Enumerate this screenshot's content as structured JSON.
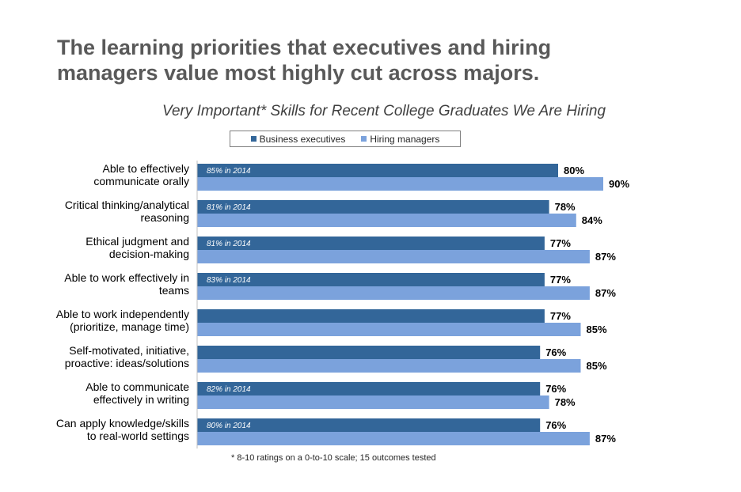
{
  "headline": "The learning priorities that executives and hiring managers value most highly cut across majors.",
  "footnote": "* 8-10 ratings on a 0-to-10 scale; 15 outcomes tested",
  "colors": {
    "executives": "#336699",
    "managers": "#7BA2DC"
  },
  "chart_data": {
    "type": "bar",
    "orientation": "horizontal",
    "title": "Very Important* Skills for Recent College Graduates We Are Hiring",
    "legend_position": "top",
    "grid": false,
    "categories": [
      [
        "Able to effectively",
        "communicate orally"
      ],
      [
        "Critical thinking/analytical",
        "reasoning"
      ],
      [
        "Ethical judgment and",
        "decision-making"
      ],
      [
        "Able to work effectively in",
        "teams"
      ],
      [
        "Able to work independently",
        "(prioritize, manage time)"
      ],
      [
        "Self-motivated, initiative,",
        "proactive: ideas/solutions"
      ],
      [
        "Able to communicate",
        "effectively in writing"
      ],
      [
        "Can apply knowledge/skills",
        "to real-world settings"
      ]
    ],
    "series": [
      {
        "name": "Business executives",
        "values": [
          80,
          78,
          77,
          77,
          77,
          76,
          76,
          76
        ]
      },
      {
        "name": "Hiring managers",
        "values": [
          90,
          84,
          87,
          87,
          85,
          85,
          78,
          87
        ]
      }
    ],
    "executive_bar_notes": [
      "85% in 2014",
      "81% in 2014",
      "81% in 2014",
      "83% in 2014",
      "",
      "",
      "82% in 2014",
      "80% in 2014"
    ],
    "value_suffix": "%"
  }
}
